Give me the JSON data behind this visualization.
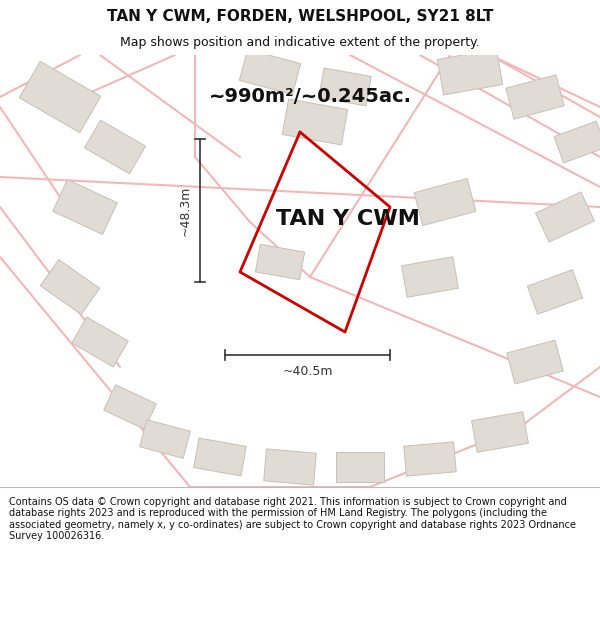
{
  "title": "TAN Y CWM, FORDEN, WELSHPOOL, SY21 8LT",
  "subtitle": "Map shows position and indicative extent of the property.",
  "property_label": "TAN Y CWM",
  "area_label": "~990m²/~0.245ac.",
  "width_label": "~40.5m",
  "height_label": "~48.3m",
  "footer": "Contains OS data © Crown copyright and database right 2021. This information is subject to Crown copyright and database rights 2023 and is reproduced with the permission of HM Land Registry. The polygons (including the associated geometry, namely x, y co-ordinates) are subject to Crown copyright and database rights 2023 Ordnance Survey 100026316.",
  "bg_color": "#ffffff",
  "map_bg": "#f8f6f4",
  "road_color": "#f0b8b8",
  "road_outline_color": "#d8a0a0",
  "building_color": "#e0dbd5",
  "building_edge_color": "#c8c0b8",
  "plot_color": "#cc0000",
  "dim_color": "#333333",
  "title_fontsize": 11,
  "subtitle_fontsize": 9,
  "area_fontsize": 14,
  "property_fontsize": 16,
  "dim_fontsize": 9,
  "footer_fontsize": 7
}
